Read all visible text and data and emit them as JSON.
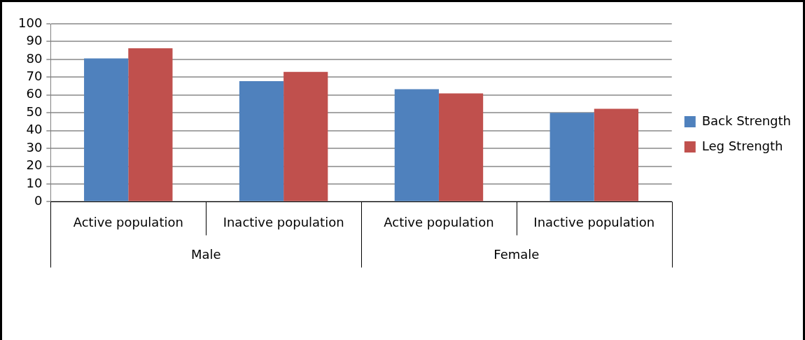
{
  "chart_data": {
    "type": "bar",
    "categories": [
      "Active population",
      "Inactive population",
      "Active population",
      "Inactive population"
    ],
    "series": [
      {
        "name": "Back Strength",
        "color": "#4f81bd",
        "values": [
          80.5,
          67.8,
          63.2,
          50
        ]
      },
      {
        "name": "Leg Strength",
        "color": "#c0504d",
        "values": [
          86.2,
          73,
          60.9,
          52.2
        ]
      }
    ],
    "annotations": [
      "Male",
      "Female"
    ],
    "ylim": [
      0,
      100
    ],
    "yticks": [
      0,
      10,
      20,
      30,
      40,
      50,
      60,
      70,
      80,
      90,
      100
    ],
    "grid": "y",
    "legend": "right"
  }
}
